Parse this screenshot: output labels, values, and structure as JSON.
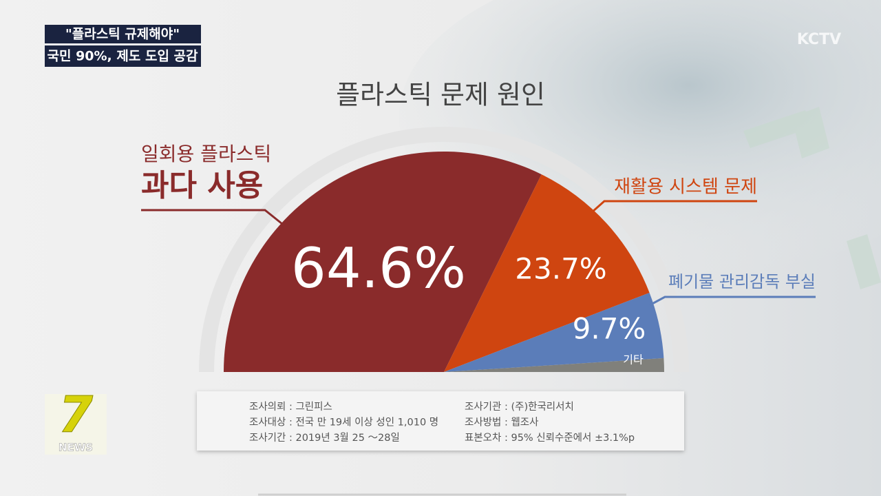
{
  "caption": [
    "\"플라스틱 규제해야\"",
    "국민 90%, 제도 도입 공감"
  ],
  "channel_logo": "KCTV",
  "program_logo": {
    "number": "7",
    "text": "NEWS"
  },
  "chart_data": {
    "type": "pie",
    "arc_degrees": 180,
    "title": "플라스틱 문제 원인",
    "categories": [
      [
        "일회용 플라스틱",
        "과다 사용"
      ],
      [
        "재활용 시스템 문제"
      ],
      [
        "폐기물 관리감독 부실"
      ],
      [
        "기타"
      ]
    ],
    "values": [
      64.6,
      23.7,
      9.7,
      2.0
    ],
    "value_labels": [
      "64.6%",
      "23.7%",
      "9.7%",
      null
    ],
    "colors": [
      "#8a2b2b",
      "#cf4510",
      "#5b7db9",
      "#80807b"
    ]
  },
  "survey_notes": [
    [
      "조사의뢰 : 그린피스",
      "조사기관 : (주)한국리서치"
    ],
    [
      "조사대상 : 전국 만 19세 이상 성인 1,010 명",
      "조사방법 : 웹조사"
    ],
    [
      "조사기간 : 2019년 3월 25 ～28일",
      "표본오차 : 95% 신뢰수준에서 ±3.1%p"
    ]
  ]
}
